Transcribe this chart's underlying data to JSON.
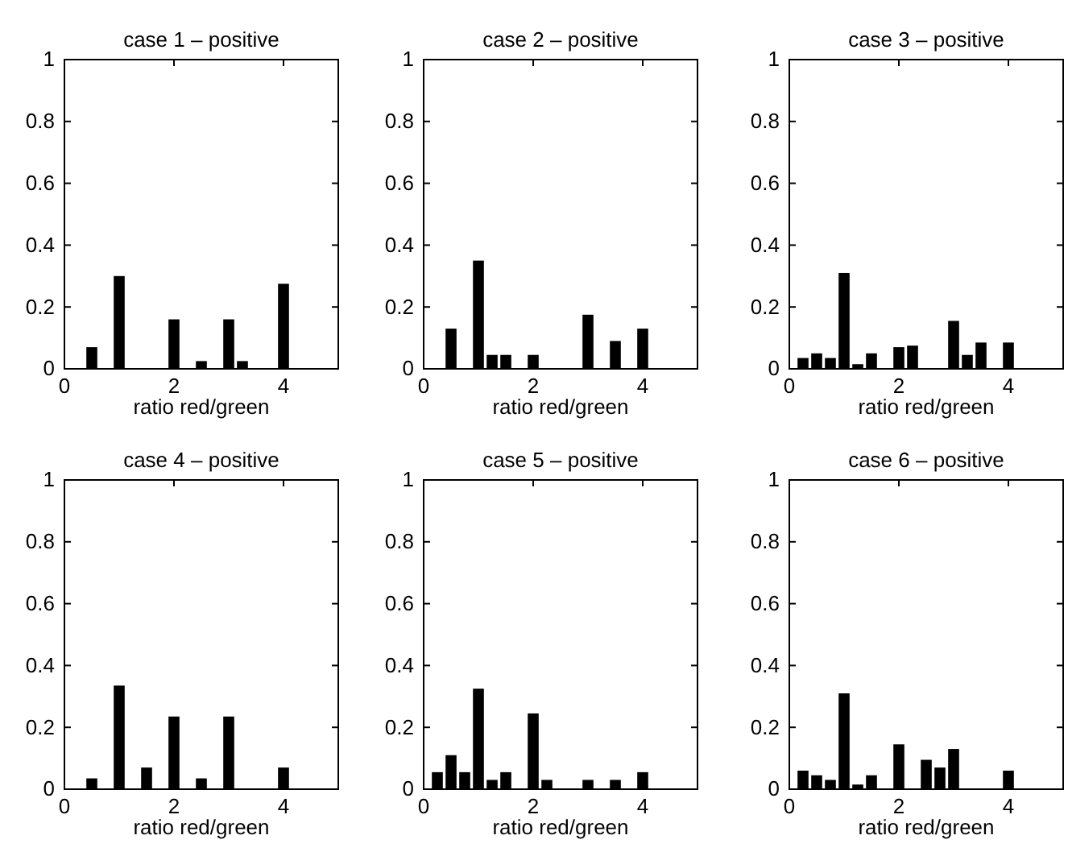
{
  "chart_data": [
    {
      "type": "bar",
      "title": "case 1 – positive",
      "xlabel": "ratio red/green",
      "x": [
        0.5,
        1,
        2,
        2.5,
        3,
        3.25,
        4
      ],
      "values": [
        0.07,
        0.3,
        0.16,
        0.025,
        0.16,
        0.025,
        0.275
      ],
      "color": "#000000",
      "xlim": [
        0,
        5
      ],
      "xticks": [
        0,
        2,
        4
      ],
      "ylim": [
        0,
        1
      ],
      "yticks": [
        0,
        0.2,
        0.4,
        0.6,
        0.8,
        1
      ]
    },
    {
      "type": "bar",
      "title": "case 2 – positive",
      "xlabel": "ratio red/green",
      "x": [
        0.5,
        1,
        1.25,
        1.5,
        2,
        3,
        3.5,
        4
      ],
      "values": [
        0.13,
        0.35,
        0.045,
        0.045,
        0.045,
        0.175,
        0.09,
        0.13
      ],
      "color": "#000000",
      "xlim": [
        0,
        5
      ],
      "xticks": [
        0,
        2,
        4
      ],
      "ylim": [
        0,
        1
      ],
      "yticks": [
        0,
        0.2,
        0.4,
        0.6,
        0.8,
        1
      ]
    },
    {
      "type": "bar",
      "title": "case 3 – positive",
      "xlabel": "ratio red/green",
      "x": [
        0.25,
        0.5,
        0.75,
        1,
        1.25,
        1.5,
        2,
        2.25,
        3,
        3.25,
        3.5,
        4
      ],
      "values": [
        0.035,
        0.05,
        0.035,
        0.31,
        0.015,
        0.05,
        0.07,
        0.075,
        0.155,
        0.045,
        0.085,
        0.085
      ],
      "color": "#000000",
      "xlim": [
        0,
        5
      ],
      "xticks": [
        0,
        2,
        4
      ],
      "ylim": [
        0,
        1
      ],
      "yticks": [
        0,
        0.2,
        0.4,
        0.6,
        0.8,
        1
      ]
    },
    {
      "type": "bar",
      "title": "case 4 – positive",
      "xlabel": "ratio red/green",
      "x": [
        0.5,
        1,
        1.5,
        2,
        2.5,
        3,
        4
      ],
      "values": [
        0.035,
        0.335,
        0.07,
        0.235,
        0.035,
        0.235,
        0.07
      ],
      "color": "#000000",
      "xlim": [
        0,
        5
      ],
      "xticks": [
        0,
        2,
        4
      ],
      "ylim": [
        0,
        1
      ],
      "yticks": [
        0,
        0.2,
        0.4,
        0.6,
        0.8,
        1
      ]
    },
    {
      "type": "bar",
      "title": "case 5 – positive",
      "xlabel": "ratio red/green",
      "x": [
        0.25,
        0.5,
        0.75,
        1,
        1.25,
        1.5,
        2,
        2.25,
        3,
        3.5,
        4
      ],
      "values": [
        0.055,
        0.11,
        0.055,
        0.325,
        0.03,
        0.055,
        0.245,
        0.03,
        0.03,
        0.03,
        0.055
      ],
      "color": "#000000",
      "xlim": [
        0,
        5
      ],
      "xticks": [
        0,
        2,
        4
      ],
      "ylim": [
        0,
        1
      ],
      "yticks": [
        0,
        0.2,
        0.4,
        0.6,
        0.8,
        1
      ]
    },
    {
      "type": "bar",
      "title": "case 6 – positive",
      "xlabel": "ratio red/green",
      "x": [
        0.25,
        0.5,
        0.75,
        1,
        1.25,
        1.5,
        2,
        2.5,
        2.75,
        3,
        4
      ],
      "values": [
        0.06,
        0.045,
        0.03,
        0.31,
        0.015,
        0.045,
        0.145,
        0.095,
        0.07,
        0.13,
        0.06
      ],
      "color": "#000000",
      "xlim": [
        0,
        5
      ],
      "xticks": [
        0,
        2,
        4
      ],
      "ylim": [
        0,
        1
      ],
      "yticks": [
        0,
        0.2,
        0.4,
        0.6,
        0.8,
        1
      ]
    }
  ]
}
